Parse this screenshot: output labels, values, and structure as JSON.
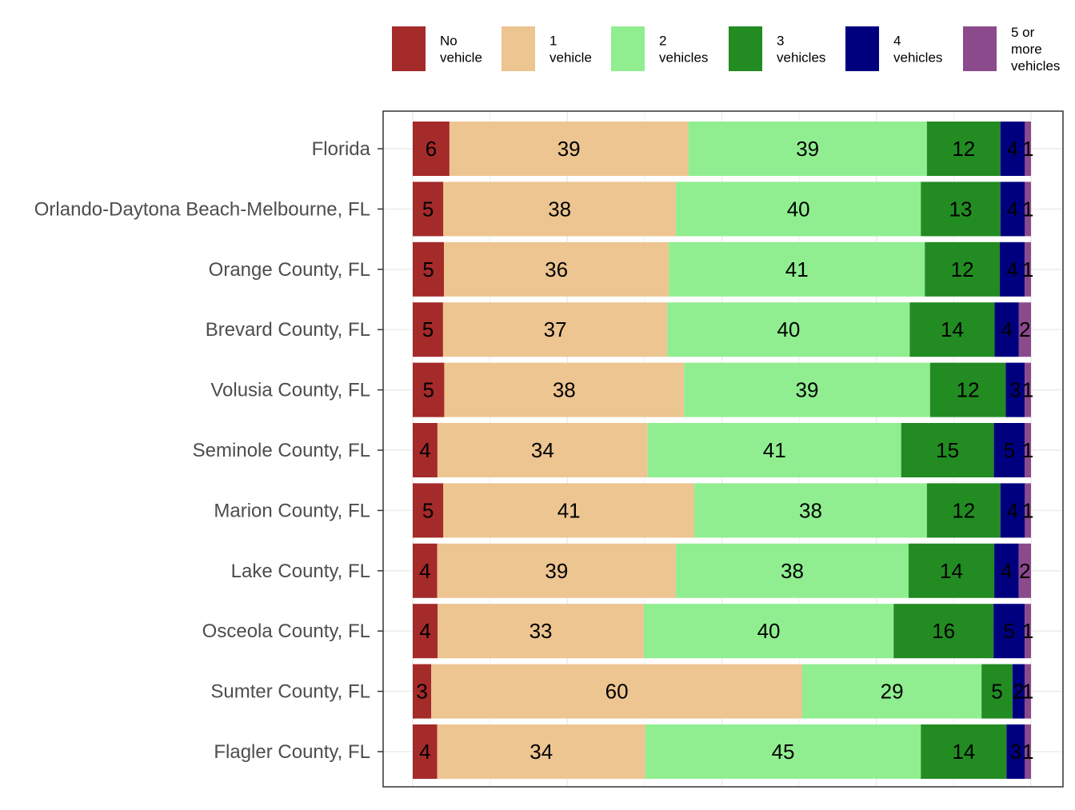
{
  "chart_data": {
    "type": "bar",
    "orientation": "horizontal",
    "stacked": true,
    "normalized_percent": true,
    "legend_position": "top",
    "grid": true,
    "categories": [
      "Florida",
      "Orlando-Daytona Beach-Melbourne, FL",
      "Orange County, FL",
      "Brevard County, FL",
      "Volusia County, FL",
      "Seminole County, FL",
      "Marion County, FL",
      "Lake County, FL",
      "Osceola County, FL",
      "Sumter County, FL",
      "Flagler County, FL"
    ],
    "series": [
      {
        "name": "No vehicle",
        "legend_lines": [
          "No",
          "vehicle"
        ],
        "color": "#a52a2a",
        "values": [
          6,
          5,
          5,
          5,
          5,
          4,
          5,
          4,
          4,
          3,
          4
        ]
      },
      {
        "name": "1 vehicle",
        "legend_lines": [
          "1",
          "vehicle"
        ],
        "color": "#edc591",
        "values": [
          39,
          38,
          36,
          37,
          38,
          34,
          41,
          39,
          33,
          60,
          34
        ]
      },
      {
        "name": "2 vehicles",
        "legend_lines": [
          "2",
          "vehicles"
        ],
        "color": "#90ee90",
        "values": [
          39,
          40,
          41,
          40,
          39,
          41,
          38,
          38,
          40,
          29,
          45
        ]
      },
      {
        "name": "3 vehicles",
        "legend_lines": [
          "3",
          "vehicles"
        ],
        "color": "#228b22",
        "values": [
          12,
          13,
          12,
          14,
          12,
          15,
          12,
          14,
          16,
          5,
          14
        ]
      },
      {
        "name": "4 vehicles",
        "legend_lines": [
          "4",
          "vehicles"
        ],
        "color": "#00007f",
        "values": [
          4,
          4,
          4,
          4,
          3,
          5,
          4,
          4,
          5,
          2,
          3
        ]
      },
      {
        "name": "5 or more vehicles",
        "legend_lines": [
          "5 or",
          "more",
          "vehicles"
        ],
        "color": "#8b4a8b",
        "values": [
          1,
          1,
          1,
          2,
          1,
          1,
          1,
          2,
          1,
          1,
          1
        ]
      }
    ],
    "title": "",
    "xlabel": "",
    "ylabel": "",
    "xlim": [
      0,
      100
    ]
  }
}
